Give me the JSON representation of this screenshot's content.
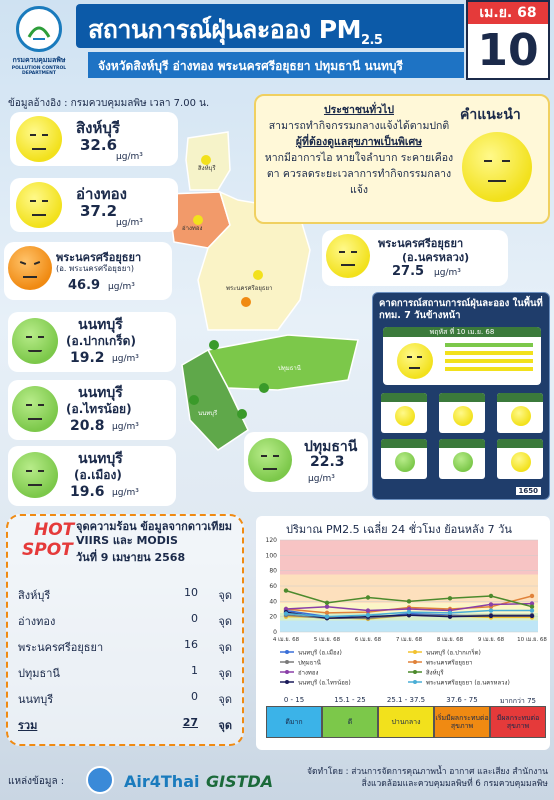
{
  "header": {
    "logo_text": "กรมควบคุมมลพิษ",
    "logo_sub": "POLLUTION CONTROL DEPARTMENT",
    "title": "สถานการณ์ฝุ่นละออง PM",
    "title_sub": "2.5",
    "subtitle": "จังหวัดสิงห์บุรี อ่างทอง พระนครศรีอยุธยา ปทุมธานี นนทบุรี",
    "date_month": "เม.ย. 68",
    "date_day": "10"
  },
  "reference": "ข้อมูลอ้างอิง : กรมควบคุมมลพิษ เวลา 7.00 น.",
  "stations": [
    {
      "name": "สิงห์บุรี",
      "sub": "",
      "value": "32.6",
      "unit": "µg/m³",
      "level": "yellow"
    },
    {
      "name": "อ่างทอง",
      "sub": "",
      "value": "37.2",
      "unit": "µg/m³",
      "level": "yellow"
    },
    {
      "name": "พระนครศรีอยุธยา",
      "sub": "(อ. พระนครศรีอยุธยา)",
      "value": "46.9",
      "unit": "µg/m³",
      "level": "orange"
    },
    {
      "name": "นนทบุรี",
      "sub": "(อ.ปากเกร็ด)",
      "value": "19.2",
      "unit": "µg/m³",
      "level": "green"
    },
    {
      "name": "นนทบุรี",
      "sub": "(อ.ไทรน้อย)",
      "value": "20.8",
      "unit": "µg/m³",
      "level": "green"
    },
    {
      "name": "นนทบุรี",
      "sub": "(อ.เมือง)",
      "value": "19.6",
      "unit": "µg/m³",
      "level": "green"
    },
    {
      "name": "พระนครศรีอยุธยา",
      "sub": "(อ.นครหลวง)",
      "value": "27.5",
      "unit": "µg/m³",
      "level": "yellow"
    },
    {
      "name": "ปทุมธานี",
      "sub": "",
      "value": "22.3",
      "unit": "µg/m³",
      "level": "green"
    }
  ],
  "advice": {
    "title": "คำแนะนำ",
    "general_head": "ประชาชนทั่วไป",
    "general_body": "สามารถทำกิจกรรมกลางแจ้งได้ตามปกติ",
    "sensitive_head": "ผู้ที่ต้องดูแลสุขภาพเป็นพิเศษ",
    "sensitive_body": "หากมีอาการไอ หายใจลำบาก ระคายเคืองตา ควรลดระยะเวลาการทำกิจกรรมกลางแจ้ง"
  },
  "map_labels": {
    "singburi": "สิงห์บุรี",
    "angthong": "อ่างทอง",
    "ayutthaya": "พระนครศรีอยุธยา",
    "pathum": "ปทุมธานี",
    "nonthaburi": "นนทบุรี"
  },
  "forecast": {
    "title": "คาดการณ์สถานการณ์ฝุ่นละออง ในพื้นที่ กทม. 7 วันข้างหน้า",
    "main_date": "พฤหัส ที่ 10 เม.ย. 68",
    "hotline": "1650"
  },
  "hotspot": {
    "title_hot": "HOT",
    "title_spot": "SPOT",
    "heading": "จุดความร้อน ข้อมูลจากดาวเทียม VIIRS และ MODIS",
    "date": "วันที่ 9 เมษายน 2568",
    "unit": "จุด",
    "rows": [
      {
        "name": "สิงห์บุรี",
        "count": "10"
      },
      {
        "name": "อ่างทอง",
        "count": "0"
      },
      {
        "name": "พระนครศรีอยุธยา",
        "count": "16"
      },
      {
        "name": "ปทุมธานี",
        "count": "1"
      },
      {
        "name": "นนทบุรี",
        "count": "0"
      }
    ],
    "total_label": "รวม",
    "total": "27"
  },
  "chart_data": {
    "type": "line",
    "title": "ปริมาณ PM2.5 เฉลี่ย 24 ชั่วโมง ย้อนหลัง 7 วัน",
    "categories": [
      "4 เม.ย. 68",
      "5 เม.ย. 68",
      "6 เม.ย. 68",
      "7 เม.ย. 68",
      "8 เม.ย. 68",
      "9 เม.ย. 68",
      "10 เม.ย. 68"
    ],
    "ylim": [
      0,
      120
    ],
    "yticks": [
      0,
      20,
      40,
      60,
      80,
      100,
      120
    ],
    "series": [
      {
        "name": "นนทบุรี (อ.เมือง)",
        "color": "#3a6fd8",
        "values": [
          28,
          20,
          18,
          24,
          22,
          20,
          20
        ]
      },
      {
        "name": "นนทบุรี (อ.ปากเกร็ด)",
        "color": "#f2c230",
        "values": [
          20,
          19,
          17,
          22,
          21,
          19,
          19
        ]
      },
      {
        "name": "ปทุมธานี",
        "color": "#7a7a7a",
        "values": [
          22,
          18,
          18,
          22,
          21,
          22,
          22
        ]
      },
      {
        "name": "พระนครศรีอยุธยา",
        "color": "#e0823a",
        "values": [
          30,
          25,
          26,
          32,
          30,
          33,
          47
        ]
      },
      {
        "name": "อ่างทอง",
        "color": "#8a3fa8",
        "values": [
          30,
          33,
          28,
          30,
          28,
          36,
          37
        ]
      },
      {
        "name": "สิงห์บุรี",
        "color": "#4c8a2c",
        "values": [
          54,
          38,
          45,
          40,
          44,
          47,
          33
        ]
      },
      {
        "name": "นนทบุรี (อ.ไทรน้อย)",
        "color": "#1a1a5a",
        "values": [
          26,
          18,
          20,
          22,
          20,
          21,
          21
        ]
      },
      {
        "name": "พระนครศรีอยุธยา (อ.นครหลวง)",
        "color": "#4aaed6",
        "values": [
          24,
          20,
          22,
          26,
          25,
          28,
          28
        ]
      }
    ]
  },
  "aqi_legend": [
    {
      "range": "0 - 15",
      "label": "ดีมาก",
      "color": "#3bb3e8"
    },
    {
      "range": "15.1 - 25",
      "label": "ดี",
      "color": "#7cc84a"
    },
    {
      "range": "25.1 - 37.5",
      "label": "ปานกลาง",
      "color": "#f2e11c"
    },
    {
      "range": "37.6 - 75",
      "label": "เริ่มมีผลกระทบต่อสุขภาพ",
      "color": "#f08a12"
    },
    {
      "range": "มากกว่า 75",
      "label": "มีผลกระทบต่อสุขภาพ",
      "color": "#e53a3a"
    }
  ],
  "footer": {
    "source_label": "แหล่งข้อมูล :",
    "logo1": "Air4Thai",
    "logo2": "GISTDA",
    "made_by": "จัดทำโดย : ส่วนการจัดการคุณภาพน้ำ อากาศ และเสียง สำนักงานสิ่งแวดล้อมและควบคุมมลพิษที่ 6 กรมควบคุมมลพิษ"
  }
}
